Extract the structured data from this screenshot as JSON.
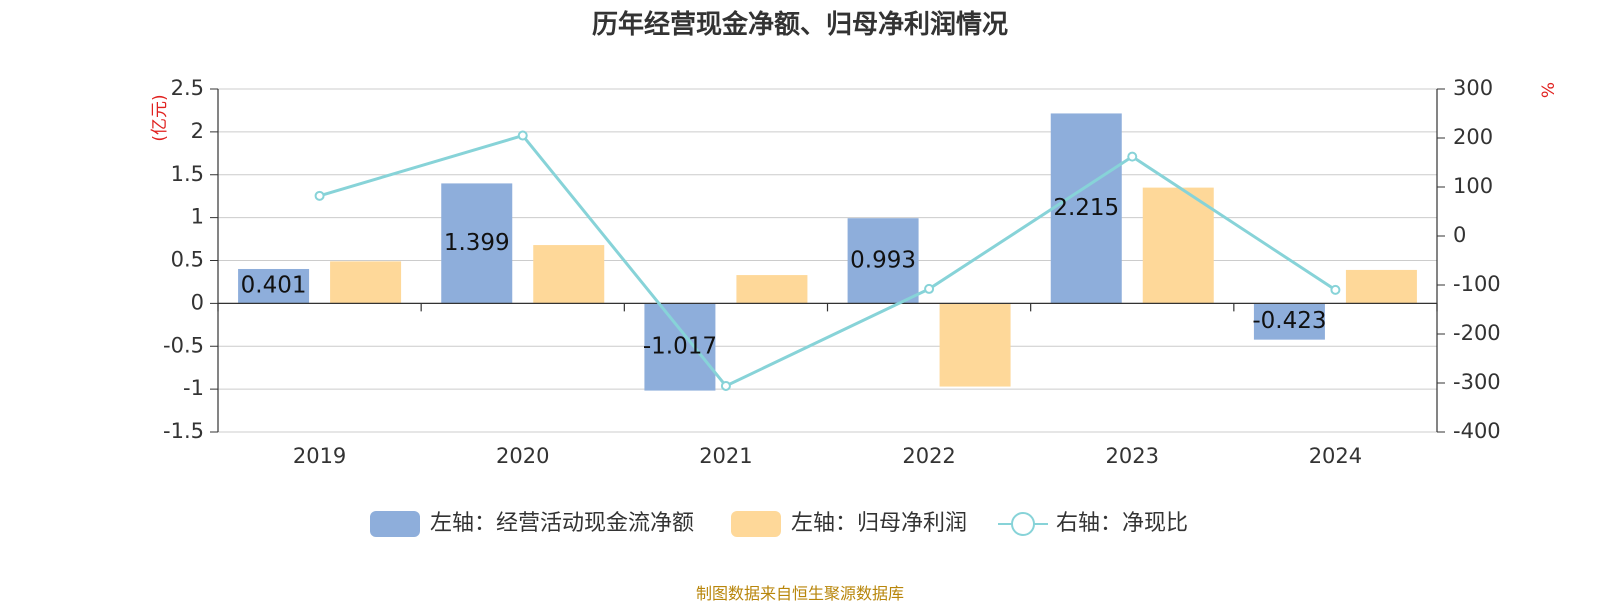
{
  "chart_data": {
    "type": "bar",
    "title": "历年经营现金净额、归母净利润情况",
    "source": "制图数据来自恒生聚源数据库",
    "categories": [
      "2019",
      "2020",
      "2021",
      "2022",
      "2023",
      "2024"
    ],
    "left_axis": {
      "unit": "(亿元)",
      "ylim": [
        -1.5,
        2.5
      ],
      "ticks": [
        "2.5",
        "2",
        "1.5",
        "1",
        "0.5",
        "0",
        "-0.5",
        "-1",
        "-1.5"
      ]
    },
    "right_axis": {
      "unit": "%",
      "ylim": [
        -400,
        300
      ],
      "ticks": [
        "300",
        "200",
        "100",
        "0",
        "-100",
        "-200",
        "-300",
        "-400"
      ]
    },
    "series": [
      {
        "name": "左轴：经营活动现金流净额",
        "type": "bar",
        "axis": "left",
        "color": "#8eaedb",
        "values": [
          0.401,
          1.399,
          -1.017,
          0.993,
          2.215,
          -0.423
        ],
        "labels": [
          "0.401",
          "1.399",
          "-1.017",
          "0.993",
          "2.215",
          "-0.423"
        ]
      },
      {
        "name": "左轴：归母净利润",
        "type": "bar",
        "axis": "left",
        "color": "#fed899",
        "values": [
          0.49,
          0.68,
          0.33,
          -0.97,
          1.35,
          0.39
        ]
      },
      {
        "name": "右轴：净现比",
        "type": "line",
        "axis": "right",
        "color": "#87d3d8",
        "values": [
          82,
          205,
          -306,
          -108,
          162,
          -110
        ]
      }
    ],
    "grid": true,
    "legend_position": "bottom-center"
  }
}
